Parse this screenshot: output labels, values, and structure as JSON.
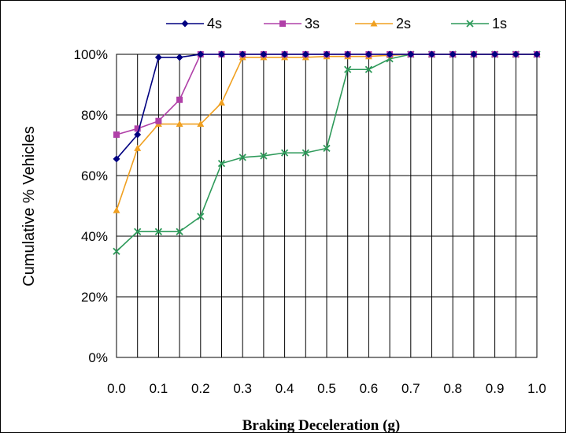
{
  "chart_data": {
    "type": "line",
    "title": "",
    "xlabel": "Braking Deceleration (g)",
    "ylabel": "Cumulative  % Vehicles",
    "xlim": [
      0,
      1.0
    ],
    "ylim": [
      0,
      100
    ],
    "x_ticks": [
      "0.0",
      "0.1",
      "0.2",
      "0.3",
      "0.4",
      "0.5",
      "0.6",
      "0.7",
      "0.8",
      "0.9",
      "1.0"
    ],
    "y_ticks": [
      "0%",
      "20%",
      "40%",
      "60%",
      "80%",
      "100%"
    ],
    "grid": true,
    "legend_position": "top",
    "x": [
      0.0,
      0.05,
      0.1,
      0.15,
      0.2,
      0.25,
      0.3,
      0.35,
      0.4,
      0.45,
      0.5,
      0.55,
      0.6,
      0.65,
      0.7,
      0.75,
      0.8,
      0.85,
      0.9,
      0.95,
      1.0
    ],
    "series": [
      {
        "name": "4s",
        "color": "#000080",
        "marker": "diamond",
        "values": [
          65.5,
          73.5,
          99,
          99,
          100,
          100,
          100,
          100,
          100,
          100,
          100,
          100,
          100,
          100,
          100,
          100,
          100,
          100,
          100,
          100,
          100
        ]
      },
      {
        "name": "3s",
        "color": "#b040a8",
        "marker": "square",
        "values": [
          73.5,
          75.5,
          78,
          85,
          100,
          100,
          100,
          100,
          100,
          100,
          100,
          100,
          100,
          100,
          100,
          100,
          100,
          100,
          100,
          100,
          100
        ]
      },
      {
        "name": "2s",
        "color": "#f0a020",
        "marker": "triangle",
        "values": [
          48.5,
          69,
          77,
          77,
          77,
          84,
          99,
          99,
          99,
          99,
          99.3,
          99.3,
          99.3,
          99.7,
          100,
          100,
          100,
          100,
          100,
          100,
          100
        ]
      },
      {
        "name": "1s",
        "color": "#2e9a5a",
        "marker": "x",
        "values": [
          35,
          41.5,
          41.5,
          41.5,
          46.5,
          64,
          66,
          66.5,
          67.5,
          67.5,
          69,
          95,
          95,
          98.5,
          100,
          100,
          100,
          100,
          100,
          100,
          100
        ]
      }
    ]
  }
}
